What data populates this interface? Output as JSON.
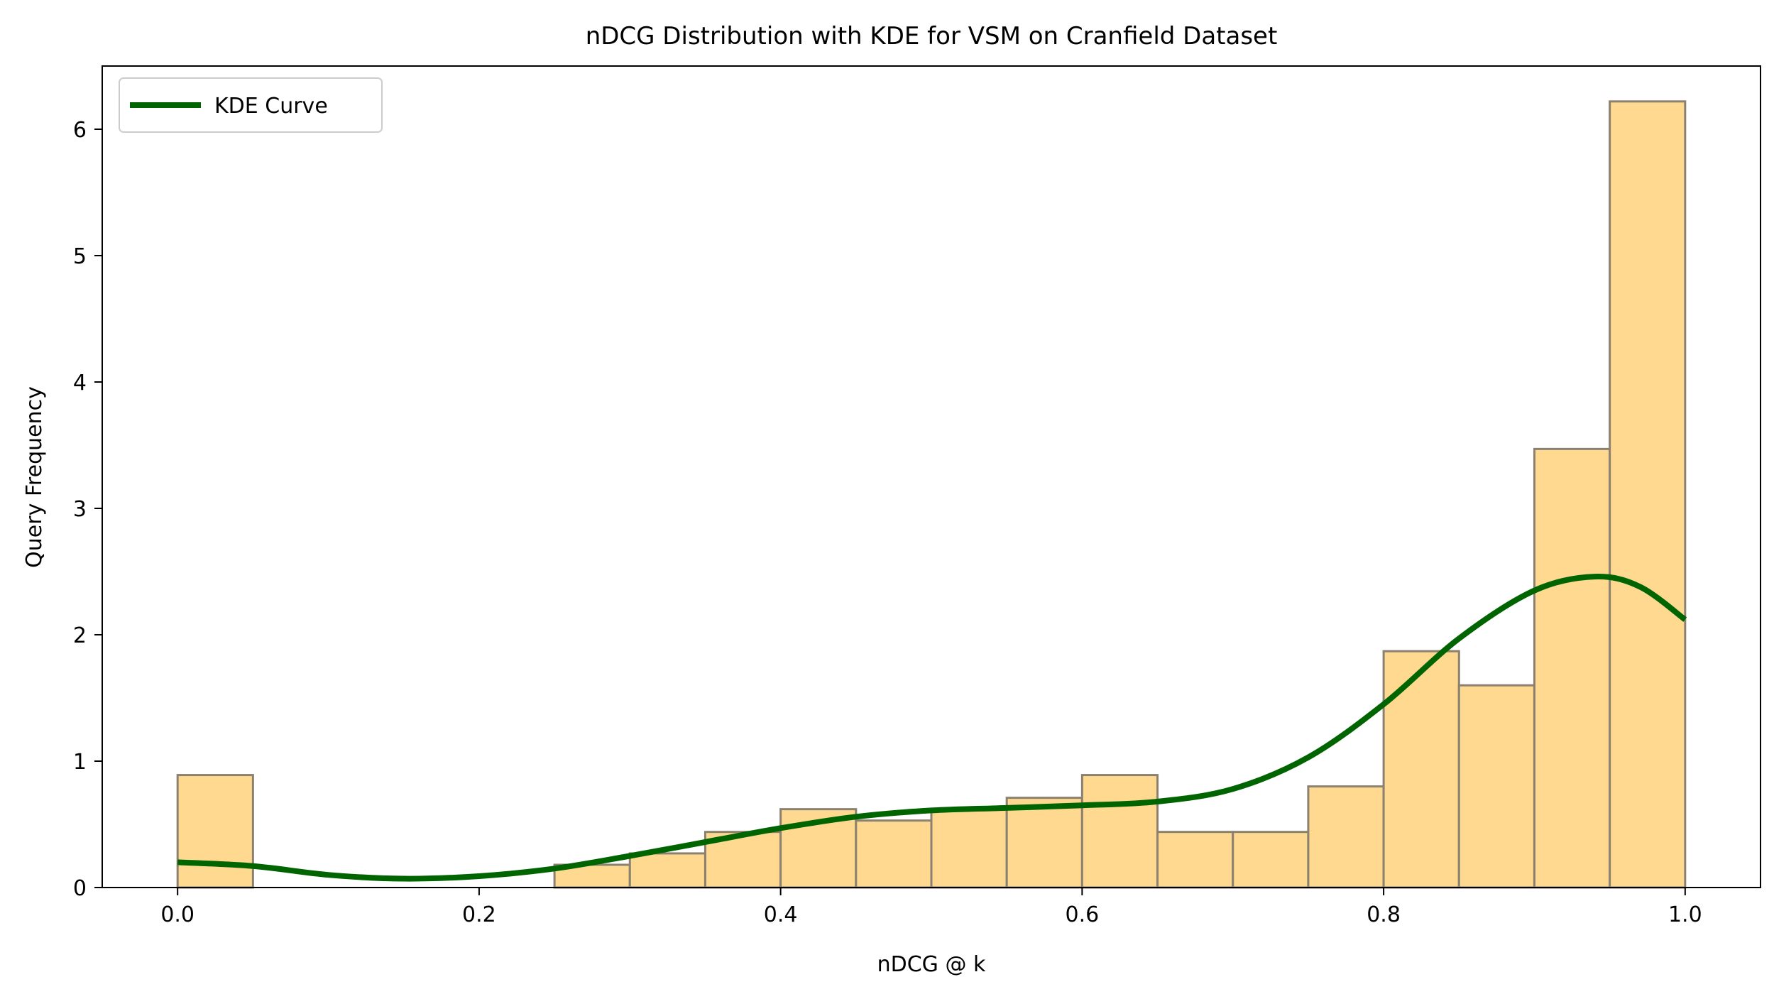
{
  "chart_data": {
    "type": "bar",
    "title": "nDCG Distribution with KDE for VSM on Cranfield Dataset",
    "xlabel": "nDCG @ k",
    "ylabel": "Query Frequency",
    "xlim": [
      -0.05,
      1.05
    ],
    "ylim": [
      0,
      6.5
    ],
    "xticks": [
      0.0,
      0.2,
      0.4,
      0.6,
      0.8,
      1.0
    ],
    "xtick_labels": [
      "0.0",
      "0.2",
      "0.4",
      "0.6",
      "0.8",
      "1.0"
    ],
    "yticks": [
      0,
      1,
      2,
      3,
      4,
      5,
      6
    ],
    "ytick_labels": [
      "0",
      "1",
      "2",
      "3",
      "4",
      "5",
      "6"
    ],
    "bin_edges": [
      0.0,
      0.05,
      0.1,
      0.15,
      0.2,
      0.25,
      0.3,
      0.35,
      0.4,
      0.45,
      0.5,
      0.55,
      0.6,
      0.65,
      0.7,
      0.75,
      0.8,
      0.85,
      0.9,
      0.95,
      1.0
    ],
    "values": [
      0.89,
      0,
      0,
      0,
      0,
      0.18,
      0.27,
      0.44,
      0.62,
      0.53,
      0.62,
      0.71,
      0.89,
      0.44,
      0.44,
      0.8,
      1.87,
      1.6,
      3.47,
      6.22
    ],
    "bar_color": "#FFD98F",
    "bar_edge_color": "#8A8170",
    "kde": {
      "name": "KDE Curve",
      "color": "#006400",
      "x": [
        0.0,
        0.05,
        0.1,
        0.15,
        0.2,
        0.25,
        0.3,
        0.35,
        0.4,
        0.45,
        0.5,
        0.55,
        0.6,
        0.65,
        0.7,
        0.75,
        0.8,
        0.85,
        0.9,
        0.94,
        0.97,
        1.0
      ],
      "y": [
        0.2,
        0.17,
        0.1,
        0.07,
        0.09,
        0.15,
        0.25,
        0.36,
        0.47,
        0.56,
        0.61,
        0.63,
        0.65,
        0.68,
        0.78,
        1.03,
        1.45,
        1.97,
        2.35,
        2.46,
        2.38,
        2.12
      ]
    },
    "legend": {
      "position": "top-left",
      "entries": [
        "KDE Curve"
      ]
    },
    "grid": false
  }
}
